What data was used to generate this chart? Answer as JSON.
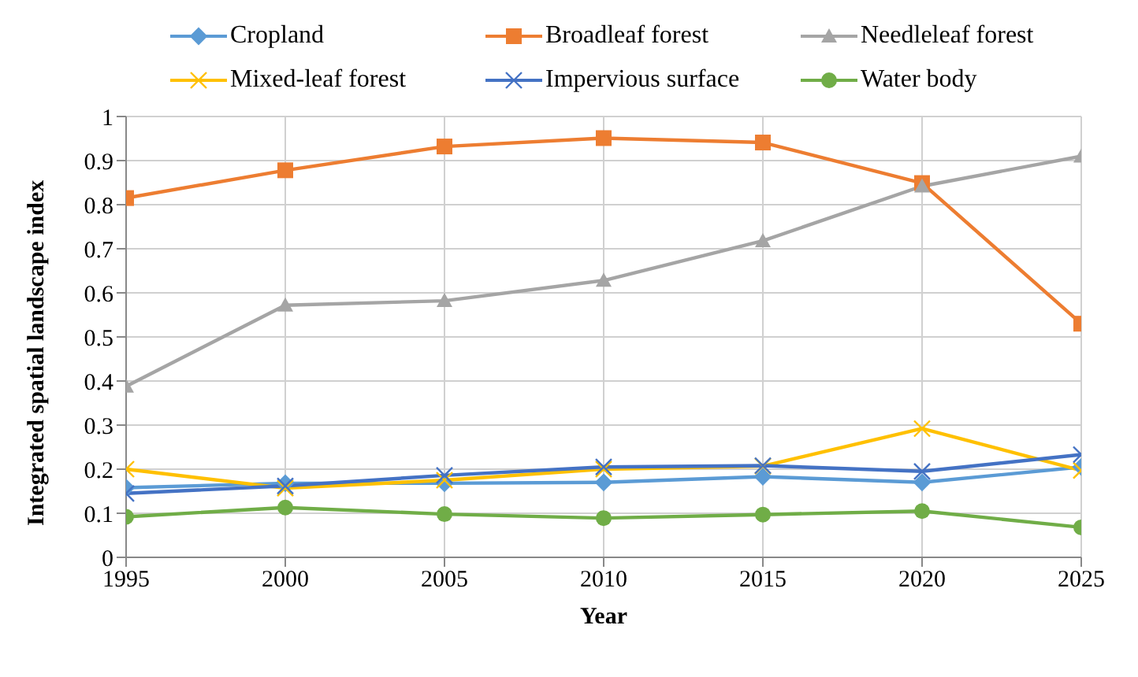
{
  "chart_data": {
    "type": "line",
    "xlabel": "Year",
    "ylabel": "Integrated spatial landscape index",
    "x": [
      1995,
      2000,
      2005,
      2010,
      2015,
      2020,
      2025
    ],
    "xlim": [
      1995,
      2025
    ],
    "xticks": [
      1995,
      2000,
      2005,
      2010,
      2015,
      2020,
      2025
    ],
    "ylim": [
      0,
      1
    ],
    "yticks": [
      0,
      0.1,
      0.2,
      0.3,
      0.4,
      0.5,
      0.6,
      0.7,
      0.8,
      0.9,
      1
    ],
    "grid": true,
    "legend": "top",
    "series": [
      {
        "name": "Cropland",
        "color": "#5b9bd5",
        "marker": "diamond",
        "values": [
          0.158,
          0.168,
          0.168,
          0.17,
          0.183,
          0.17,
          0.205
        ]
      },
      {
        "name": "Broadleaf forest",
        "color": "#ed7d31",
        "marker": "square",
        "values": [
          0.815,
          0.878,
          0.932,
          0.951,
          0.941,
          0.849,
          0.53
        ]
      },
      {
        "name": "Needleleaf forest",
        "color": "#a5a5a5",
        "marker": "triangle",
        "values": [
          0.388,
          0.572,
          0.582,
          0.628,
          0.718,
          0.842,
          0.91
        ]
      },
      {
        "name": "Mixed-leaf forest",
        "color": "#ffc000",
        "marker": "cross",
        "values": [
          0.2,
          0.157,
          0.175,
          0.2,
          0.207,
          0.292,
          0.197
        ]
      },
      {
        "name": "Impervious surface",
        "color": "#4472c4",
        "marker": "cross",
        "values": [
          0.145,
          0.162,
          0.186,
          0.205,
          0.208,
          0.195,
          0.233
        ]
      },
      {
        "name": "Water body",
        "color": "#70ad47",
        "marker": "circle",
        "values": [
          0.092,
          0.113,
          0.098,
          0.089,
          0.097,
          0.105,
          0.068
        ]
      }
    ]
  }
}
